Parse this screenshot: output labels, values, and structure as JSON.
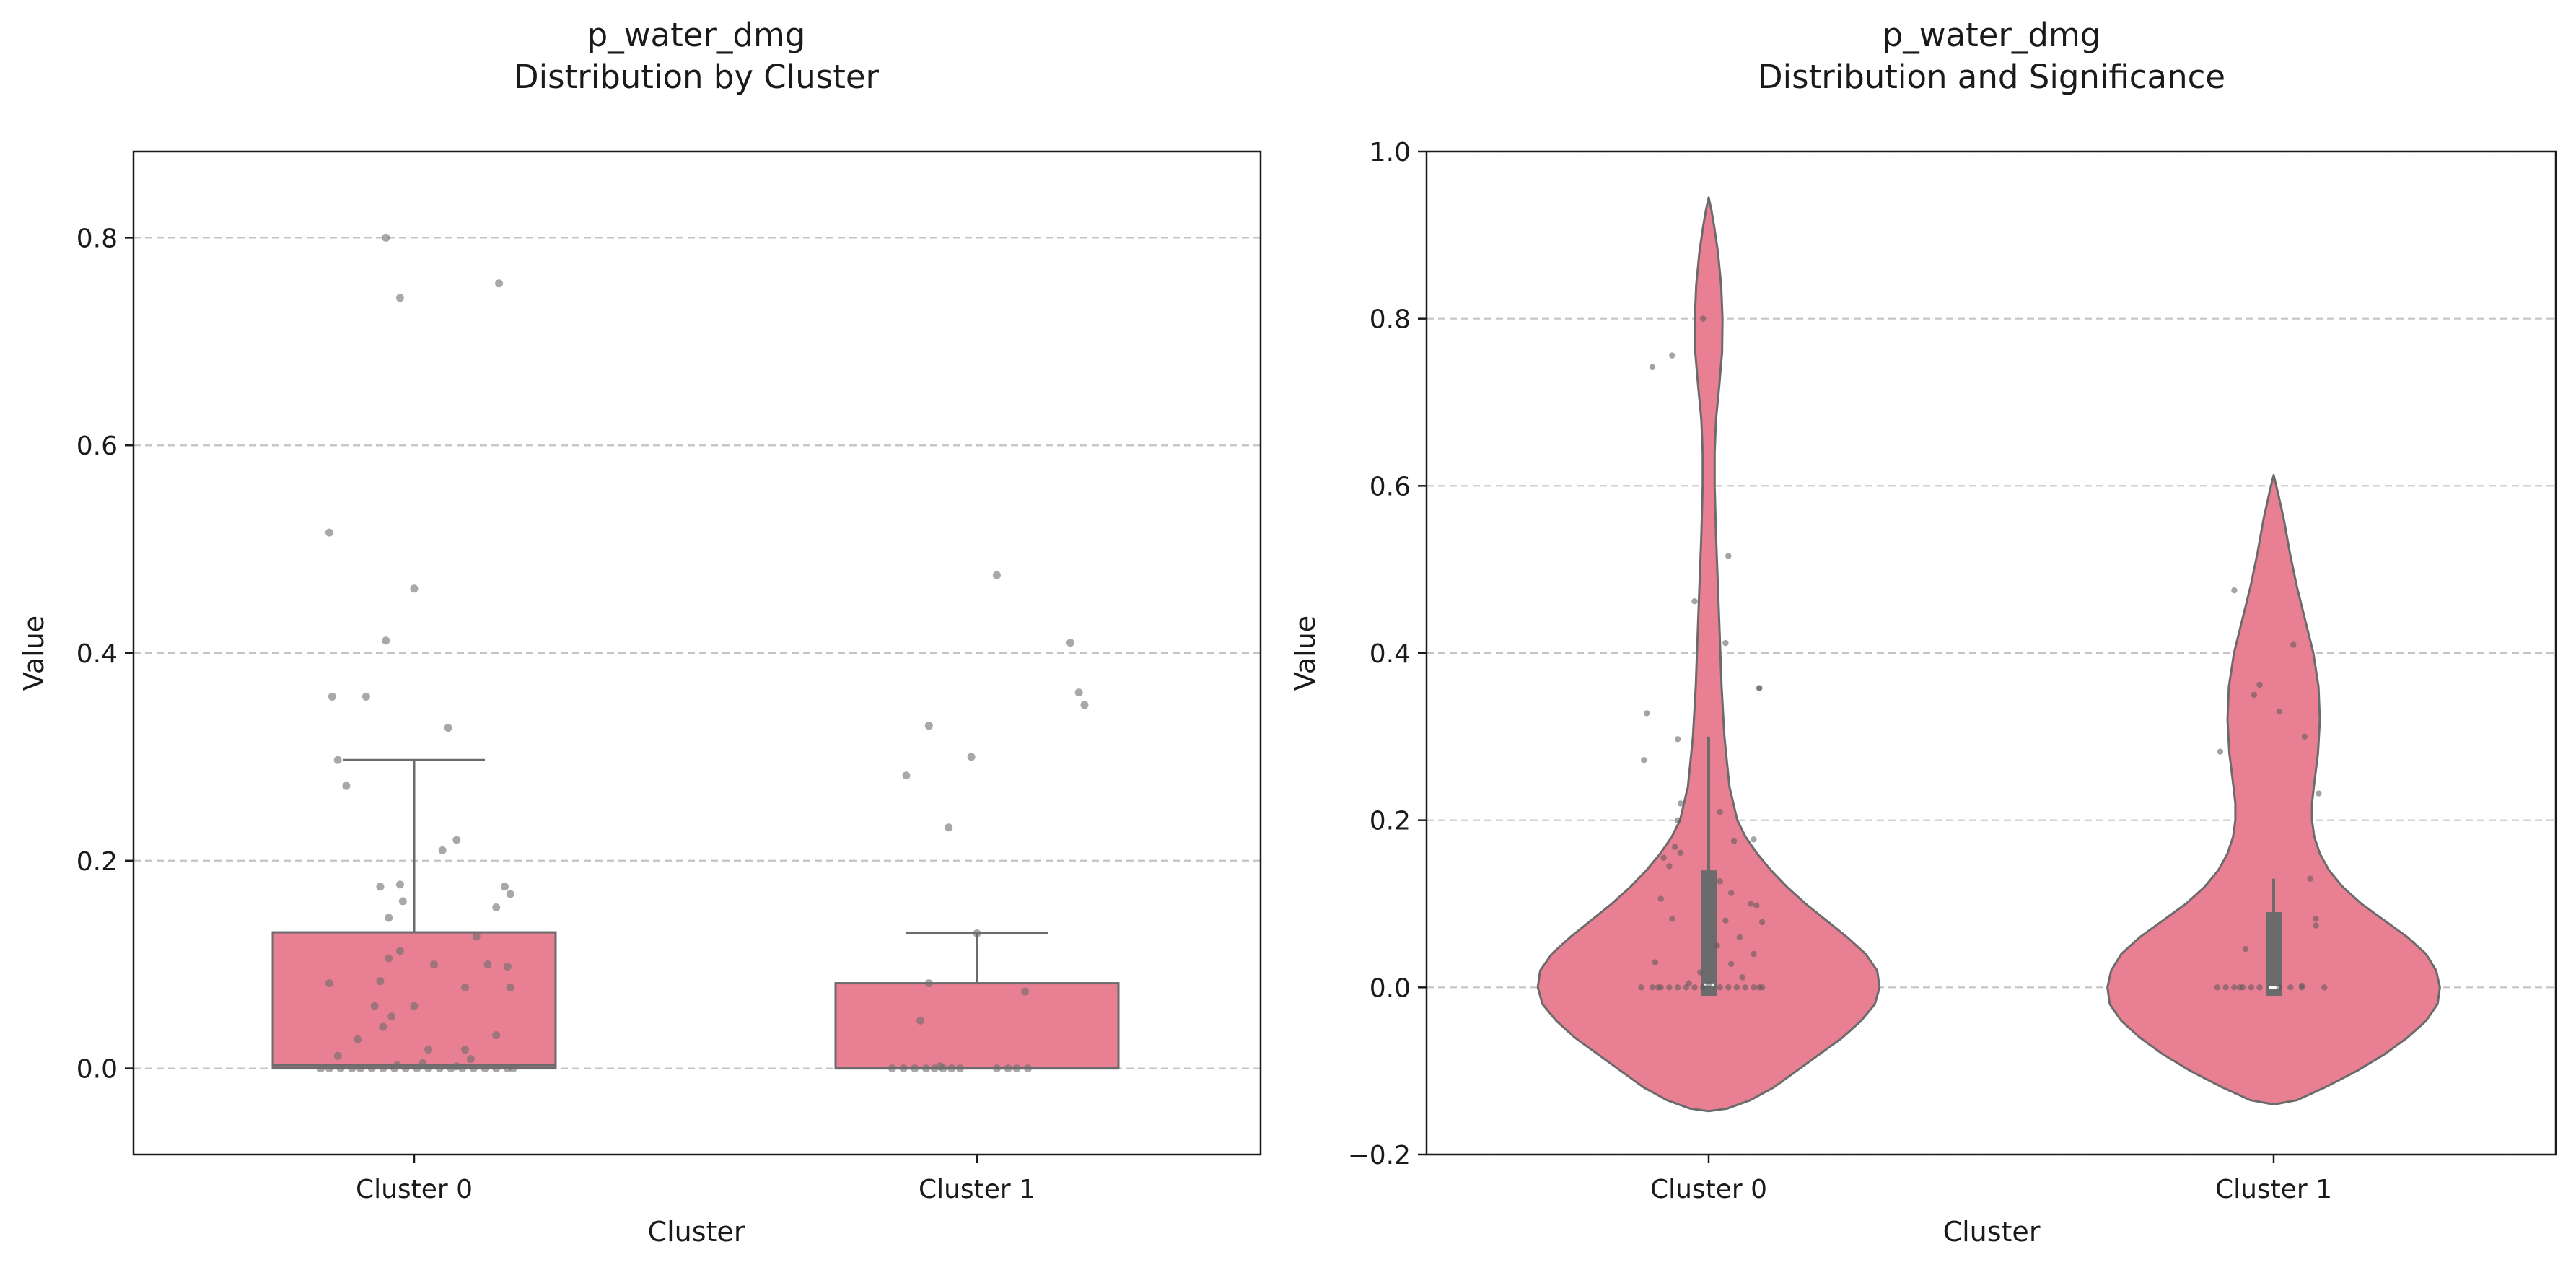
{
  "figure": {
    "background": "#ffffff"
  },
  "chart_data": [
    {
      "type": "box",
      "title_line1": "p_water_dmg",
      "title_line2": "Distribution by Cluster",
      "xlabel": "Cluster",
      "ylabel": "Value",
      "categories": [
        "Cluster 0",
        "Cluster 1"
      ],
      "ylim": [
        -0.083,
        0.883
      ],
      "yticks": [
        0.0,
        0.2,
        0.4,
        0.6,
        0.8
      ],
      "ytick_labels": [
        "0.0",
        "0.2",
        "0.4",
        "0.6",
        "0.8"
      ],
      "grid": "y dashed",
      "box_color": "#e87f93",
      "line_color": "#6b6b6b",
      "boxes": [
        {
          "category": "Cluster 0",
          "q1": 0.0,
          "median": 0.003,
          "q3": 0.131,
          "whisker_low": 0.0,
          "whisker_high": 0.297
        },
        {
          "category": "Cluster 1",
          "q1": 0.0,
          "median": 0.0,
          "q3": 0.082,
          "whisker_low": 0.0,
          "whisker_high": 0.13
        }
      ],
      "points": [
        [
          [
            -0.1,
            0.8
          ],
          [
            -0.05,
            0.742
          ],
          [
            0.3,
            0.756
          ],
          [
            -0.3,
            0.516
          ],
          [
            0.0,
            0.462
          ],
          [
            -0.1,
            0.412
          ],
          [
            -0.17,
            0.358
          ],
          [
            -0.29,
            0.358
          ],
          [
            0.12,
            0.328
          ],
          [
            -0.27,
            0.297
          ],
          [
            -0.24,
            0.272
          ],
          [
            0.15,
            0.22
          ],
          [
            0.1,
            0.21
          ],
          [
            0.32,
            0.175
          ],
          [
            -0.05,
            0.177
          ],
          [
            -0.12,
            0.175
          ],
          [
            0.34,
            0.168
          ],
          [
            -0.04,
            0.161
          ],
          [
            0.29,
            0.155
          ],
          [
            -0.09,
            0.145
          ],
          [
            0.22,
            0.127
          ],
          [
            -0.05,
            0.113
          ],
          [
            0.07,
            0.1
          ],
          [
            0.26,
            0.1
          ],
          [
            0.33,
            0.098
          ],
          [
            -0.09,
            0.106
          ],
          [
            -0.3,
            0.082
          ],
          [
            -0.12,
            0.084
          ],
          [
            0.18,
            0.078
          ],
          [
            0.34,
            0.078
          ],
          [
            -0.14,
            0.06
          ],
          [
            0.0,
            0.06
          ],
          [
            -0.08,
            0.05
          ],
          [
            -0.11,
            0.04
          ],
          [
            0.29,
            0.032
          ],
          [
            -0.2,
            0.028
          ],
          [
            -0.27,
            0.012
          ],
          [
            0.05,
            0.018
          ],
          [
            0.18,
            0.018
          ],
          [
            0.2,
            0.009
          ],
          [
            -0.33,
            0.0
          ],
          [
            -0.3,
            0.0
          ],
          [
            -0.26,
            0.0
          ],
          [
            -0.22,
            0.0
          ],
          [
            -0.19,
            0.0
          ],
          [
            -0.15,
            0.0
          ],
          [
            -0.11,
            0.0
          ],
          [
            -0.07,
            0.0
          ],
          [
            -0.03,
            0.0
          ],
          [
            0.01,
            0.0
          ],
          [
            0.05,
            0.0
          ],
          [
            0.09,
            0.0
          ],
          [
            0.13,
            0.0
          ],
          [
            0.17,
            0.0
          ],
          [
            0.21,
            0.0
          ],
          [
            0.25,
            0.0
          ],
          [
            0.29,
            0.0
          ],
          [
            0.33,
            0.0
          ],
          [
            0.35,
            0.0
          ],
          [
            0.03,
            0.005
          ],
          [
            -0.06,
            0.003
          ],
          [
            0.15,
            0.002
          ]
        ],
        [
          [
            0.07,
            0.475
          ],
          [
            0.33,
            0.41
          ],
          [
            0.36,
            0.362
          ],
          [
            0.38,
            0.35
          ],
          [
            -0.17,
            0.33
          ],
          [
            -0.25,
            0.282
          ],
          [
            -0.02,
            0.3
          ],
          [
            -0.1,
            0.232
          ],
          [
            0.0,
            0.13
          ],
          [
            -0.17,
            0.082
          ],
          [
            0.17,
            0.074
          ],
          [
            -0.2,
            0.046
          ],
          [
            -0.3,
            0.0
          ],
          [
            -0.26,
            0.0
          ],
          [
            -0.22,
            0.0
          ],
          [
            -0.18,
            0.0
          ],
          [
            -0.15,
            0.0
          ],
          [
            -0.12,
            0.0
          ],
          [
            -0.09,
            0.0
          ],
          [
            -0.06,
            0.0
          ],
          [
            0.07,
            0.0
          ],
          [
            0.11,
            0.0
          ],
          [
            0.14,
            0.0
          ],
          [
            0.18,
            0.0
          ],
          [
            -0.13,
            0.002
          ]
        ]
      ]
    },
    {
      "type": "violin",
      "title_line1": "p_water_dmg",
      "title_line2": "Distribution and Significance",
      "xlabel": "Cluster",
      "ylabel": "Value",
      "categories": [
        "Cluster 0",
        "Cluster 1"
      ],
      "ylim": [
        -0.2,
        1.0
      ],
      "yticks": [
        -0.2,
        0.0,
        0.2,
        0.4,
        0.6,
        0.8,
        1.0
      ],
      "ytick_labels": [
        "−0.2",
        "0.0",
        "0.2",
        "0.4",
        "0.6",
        "0.8",
        "1.0"
      ],
      "grid": "y dashed",
      "violin_color": "#e87f93",
      "line_color": "#6b6b6b",
      "violins": [
        {
          "category": "Cluster 0",
          "profile": [
            [
              -0.148,
              0.0
            ],
            [
              -0.145,
              0.04
            ],
            [
              -0.135,
              0.09
            ],
            [
              -0.12,
              0.14
            ],
            [
              -0.1,
              0.19
            ],
            [
              -0.08,
              0.24
            ],
            [
              -0.06,
              0.29
            ],
            [
              -0.04,
              0.33
            ],
            [
              -0.02,
              0.36
            ],
            [
              0.0,
              0.37
            ],
            [
              0.02,
              0.365
            ],
            [
              0.04,
              0.34
            ],
            [
              0.06,
              0.3
            ],
            [
              0.08,
              0.255
            ],
            [
              0.1,
              0.21
            ],
            [
              0.12,
              0.17
            ],
            [
              0.14,
              0.135
            ],
            [
              0.16,
              0.105
            ],
            [
              0.18,
              0.08
            ],
            [
              0.2,
              0.062
            ],
            [
              0.24,
              0.045
            ],
            [
              0.3,
              0.034
            ],
            [
              0.36,
              0.028
            ],
            [
              0.42,
              0.024
            ],
            [
              0.48,
              0.02
            ],
            [
              0.54,
              0.016
            ],
            [
              0.6,
              0.013
            ],
            [
              0.64,
              0.013
            ],
            [
              0.68,
              0.016
            ],
            [
              0.72,
              0.023
            ],
            [
              0.76,
              0.029
            ],
            [
              0.8,
              0.03
            ],
            [
              0.84,
              0.027
            ],
            [
              0.88,
              0.02
            ],
            [
              0.91,
              0.012
            ],
            [
              0.93,
              0.006
            ],
            [
              0.945,
              0.0
            ]
          ],
          "q1": -0.01,
          "median": 0.003,
          "q3": 0.14,
          "whisker_low": -0.01,
          "whisker_high": 0.3
        },
        {
          "category": "Cluster 1",
          "profile": [
            [
              -0.14,
              0.0
            ],
            [
              -0.135,
              0.05
            ],
            [
              -0.12,
              0.11
            ],
            [
              -0.1,
              0.18
            ],
            [
              -0.08,
              0.24
            ],
            [
              -0.06,
              0.29
            ],
            [
              -0.04,
              0.33
            ],
            [
              -0.02,
              0.355
            ],
            [
              0.0,
              0.36
            ],
            [
              0.02,
              0.352
            ],
            [
              0.04,
              0.33
            ],
            [
              0.06,
              0.29
            ],
            [
              0.08,
              0.24
            ],
            [
              0.1,
              0.19
            ],
            [
              0.12,
              0.15
            ],
            [
              0.14,
              0.12
            ],
            [
              0.16,
              0.1
            ],
            [
              0.18,
              0.088
            ],
            [
              0.2,
              0.083
            ],
            [
              0.22,
              0.083
            ],
            [
              0.24,
              0.087
            ],
            [
              0.28,
              0.096
            ],
            [
              0.32,
              0.1
            ],
            [
              0.36,
              0.097
            ],
            [
              0.4,
              0.086
            ],
            [
              0.44,
              0.068
            ],
            [
              0.48,
              0.05
            ],
            [
              0.52,
              0.035
            ],
            [
              0.56,
              0.022
            ],
            [
              0.59,
              0.01
            ],
            [
              0.613,
              0.0
            ]
          ],
          "q1": -0.01,
          "median": 0.0,
          "q3": 0.09,
          "whisker_low": -0.01,
          "whisker_high": 0.13
        }
      ],
      "points": [
        [
          [
            -0.2,
            0.742
          ],
          [
            -0.13,
            0.756
          ],
          [
            -0.02,
            0.8
          ],
          [
            0.07,
            0.516
          ],
          [
            -0.05,
            0.462
          ],
          [
            0.06,
            0.412
          ],
          [
            0.18,
            0.358
          ],
          [
            0.18,
            0.358
          ],
          [
            -0.22,
            0.328
          ],
          [
            -0.11,
            0.297
          ],
          [
            -0.23,
            0.272
          ],
          [
            -0.1,
            0.22
          ],
          [
            0.04,
            0.21
          ],
          [
            -0.11,
            0.2
          ],
          [
            0.09,
            0.175
          ],
          [
            0.16,
            0.177
          ],
          [
            -0.12,
            0.168
          ],
          [
            -0.1,
            0.161
          ],
          [
            -0.16,
            0.155
          ],
          [
            -0.14,
            0.145
          ],
          [
            0.04,
            0.127
          ],
          [
            0.08,
            0.113
          ],
          [
            -0.17,
            0.106
          ],
          [
            0.15,
            0.1
          ],
          [
            0.17,
            0.098
          ],
          [
            -0.13,
            0.082
          ],
          [
            0.06,
            0.08
          ],
          [
            0.19,
            0.078
          ],
          [
            0.11,
            0.06
          ],
          [
            0.03,
            0.05
          ],
          [
            0.16,
            0.04
          ],
          [
            -0.19,
            0.03
          ],
          [
            0.08,
            0.028
          ],
          [
            -0.03,
            0.018
          ],
          [
            0.12,
            0.012
          ],
          [
            -0.24,
            0.0
          ],
          [
            -0.2,
            0.0
          ],
          [
            -0.17,
            0.0
          ],
          [
            -0.14,
            0.0
          ],
          [
            -0.11,
            0.0
          ],
          [
            -0.08,
            0.0
          ],
          [
            -0.05,
            0.0
          ],
          [
            -0.02,
            0.0
          ],
          [
            0.04,
            0.0
          ],
          [
            0.07,
            0.0
          ],
          [
            0.1,
            0.0
          ],
          [
            0.13,
            0.0
          ],
          [
            0.16,
            0.0
          ],
          [
            0.19,
            0.0
          ],
          [
            -0.18,
            0.0
          ],
          [
            0.0,
            0.003
          ],
          [
            -0.07,
            0.005
          ],
          [
            0.18,
            0.0
          ]
        ],
        [
          [
            -0.14,
            0.475
          ],
          [
            0.07,
            0.41
          ],
          [
            -0.05,
            0.362
          ],
          [
            -0.07,
            0.35
          ],
          [
            0.02,
            0.33
          ],
          [
            -0.19,
            0.282
          ],
          [
            0.11,
            0.3
          ],
          [
            0.16,
            0.232
          ],
          [
            0.13,
            0.13
          ],
          [
            0.15,
            0.082
          ],
          [
            0.15,
            0.074
          ],
          [
            -0.1,
            0.046
          ],
          [
            -0.2,
            0.0
          ],
          [
            -0.17,
            0.0
          ],
          [
            -0.14,
            0.0
          ],
          [
            -0.11,
            0.0
          ],
          [
            -0.08,
            0.0
          ],
          [
            -0.05,
            0.0
          ],
          [
            0.02,
            0.0
          ],
          [
            0.06,
            0.0
          ],
          [
            0.1,
            0.0
          ],
          [
            0.18,
            0.0
          ],
          [
            -0.12,
            0.0
          ],
          [
            0.1,
            0.002
          ]
        ]
      ]
    }
  ]
}
